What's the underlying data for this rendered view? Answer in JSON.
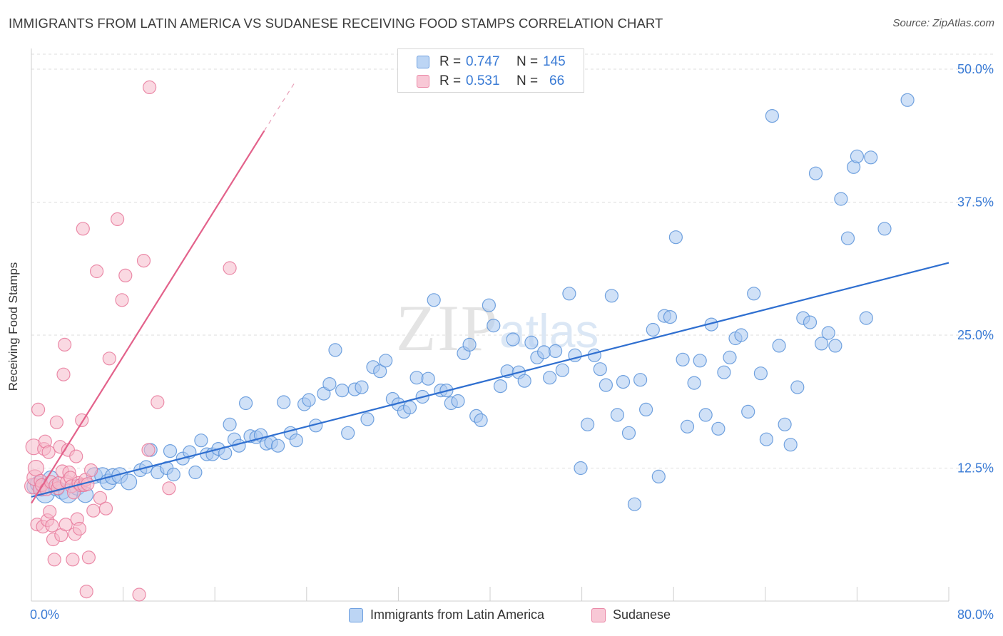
{
  "title": "IMMIGRANTS FROM LATIN AMERICA VS SUDANESE RECEIVING FOOD STAMPS CORRELATION CHART",
  "source": "Source: ZipAtlas.com",
  "watermark": {
    "zip": "ZIP",
    "atlas": "atlas"
  },
  "colors": {
    "blue_fill": "#a9c8f0",
    "blue_stroke": "#5b93d9",
    "blue_line": "#2f6fd0",
    "pink_fill": "#f6b9cb",
    "pink_stroke": "#e8799b",
    "pink_line": "#e3628b",
    "tick_text": "#3a7bd5",
    "grid": "#dddddd"
  },
  "legend": {
    "series": [
      {
        "r_label": "R =",
        "r_value": "0.747",
        "n_label": "N =",
        "n_value": "145"
      },
      {
        "r_label": "R =",
        "r_value": "0.531",
        "n_label": "N =",
        "n_value": "66"
      }
    ]
  },
  "bottom_legend": [
    "Immigrants from Latin America",
    "Sudanese"
  ],
  "chart_data": {
    "type": "scatter",
    "xlabel": "",
    "ylabel": "Receiving Food Stamps",
    "xlim": [
      0,
      80
    ],
    "ylim": [
      0,
      50
    ],
    "x_tick_labels": {
      "min": "0.0%",
      "max": "80.0%"
    },
    "y_ticks": [
      12.5,
      25.0,
      37.5,
      50.0
    ],
    "y_tick_labels": [
      "12.5%",
      "25.0%",
      "37.5%",
      "50.0%"
    ],
    "grid": true,
    "legend_position": "top-center",
    "series": [
      {
        "name": "Immigrants from Latin America",
        "color": "#a9c8f0",
        "r": 0.747,
        "n": 145,
        "trendline": {
          "x": [
            0,
            80
          ],
          "y": [
            9.8,
            31.8
          ]
        },
        "points": [
          [
            0.3,
            10.8,
            2
          ],
          [
            0.6,
            11.0,
            2
          ],
          [
            0.9,
            10.6,
            2
          ],
          [
            1.2,
            10.1,
            3
          ],
          [
            1.7,
            11.5,
            2
          ],
          [
            2.2,
            10.6,
            2
          ],
          [
            2.7,
            10.3,
            2
          ],
          [
            3.2,
            10.1,
            3
          ],
          [
            4.0,
            10.7,
            2
          ],
          [
            4.7,
            10.0,
            2
          ],
          [
            5.5,
            11.8,
            2
          ],
          [
            6.2,
            11.8,
            2
          ],
          [
            6.7,
            11.2,
            2
          ],
          [
            7.1,
            11.7,
            2
          ],
          [
            7.7,
            11.8,
            2
          ],
          [
            8.5,
            11.2,
            2
          ],
          [
            9.5,
            12.3,
            1
          ],
          [
            10.0,
            12.6,
            1
          ],
          [
            10.4,
            14.2,
            1
          ],
          [
            11.0,
            12.1,
            1
          ],
          [
            11.8,
            12.5,
            1
          ],
          [
            12.1,
            14.1,
            1
          ],
          [
            12.4,
            11.9,
            1
          ],
          [
            13.2,
            13.4,
            1
          ],
          [
            13.8,
            14.0,
            1
          ],
          [
            14.3,
            12.1,
            1
          ],
          [
            14.8,
            15.1,
            1
          ],
          [
            15.3,
            13.8,
            1
          ],
          [
            15.8,
            13.8,
            1
          ],
          [
            16.3,
            14.3,
            1
          ],
          [
            16.9,
            13.9,
            1
          ],
          [
            17.3,
            16.6,
            1
          ],
          [
            17.7,
            15.2,
            1
          ],
          [
            18.1,
            14.6,
            1
          ],
          [
            18.7,
            18.6,
            1
          ],
          [
            19.1,
            15.5,
            1
          ],
          [
            19.6,
            15.4,
            1
          ],
          [
            20.0,
            15.6,
            1
          ],
          [
            20.5,
            14.8,
            1
          ],
          [
            20.9,
            14.9,
            1
          ],
          [
            21.5,
            14.6,
            1
          ],
          [
            22.0,
            18.7,
            1
          ],
          [
            22.6,
            15.8,
            1
          ],
          [
            23.1,
            15.1,
            1
          ],
          [
            23.8,
            18.5,
            1
          ],
          [
            24.2,
            18.9,
            1
          ],
          [
            24.8,
            16.5,
            1
          ],
          [
            25.5,
            19.5,
            1
          ],
          [
            26.0,
            20.4,
            1
          ],
          [
            26.5,
            23.6,
            1
          ],
          [
            27.1,
            19.8,
            1
          ],
          [
            27.6,
            15.8,
            1
          ],
          [
            28.2,
            19.9,
            1
          ],
          [
            28.8,
            20.1,
            1
          ],
          [
            29.3,
            17.1,
            1
          ],
          [
            29.8,
            22.0,
            1
          ],
          [
            30.4,
            21.6,
            1
          ],
          [
            30.9,
            22.6,
            1
          ],
          [
            31.5,
            19.0,
            1
          ],
          [
            32.0,
            18.5,
            1
          ],
          [
            32.5,
            17.8,
            1
          ],
          [
            33.0,
            18.2,
            1
          ],
          [
            33.6,
            21.0,
            1
          ],
          [
            34.1,
            19.2,
            1
          ],
          [
            34.6,
            20.9,
            1
          ],
          [
            35.1,
            28.3,
            1
          ],
          [
            35.7,
            19.8,
            1
          ],
          [
            36.2,
            19.8,
            1
          ],
          [
            36.6,
            18.6,
            1
          ],
          [
            37.2,
            18.8,
            1
          ],
          [
            37.7,
            23.3,
            1
          ],
          [
            38.2,
            24.1,
            1
          ],
          [
            38.8,
            17.4,
            1
          ],
          [
            39.2,
            17.0,
            1
          ],
          [
            39.9,
            27.8,
            1
          ],
          [
            40.3,
            25.9,
            1
          ],
          [
            40.9,
            20.2,
            1
          ],
          [
            41.5,
            21.6,
            1
          ],
          [
            42.0,
            24.6,
            1
          ],
          [
            42.5,
            21.5,
            1
          ],
          [
            43.0,
            20.7,
            1
          ],
          [
            43.6,
            24.3,
            1
          ],
          [
            44.1,
            22.9,
            1
          ],
          [
            44.7,
            23.4,
            1
          ],
          [
            45.2,
            21.0,
            1
          ],
          [
            45.7,
            23.5,
            1
          ],
          [
            46.3,
            21.7,
            1
          ],
          [
            46.9,
            28.9,
            1
          ],
          [
            47.4,
            23.1,
            1
          ],
          [
            47.9,
            12.5,
            1
          ],
          [
            48.5,
            16.6,
            1
          ],
          [
            49.1,
            23.1,
            1
          ],
          [
            49.6,
            21.8,
            1
          ],
          [
            50.1,
            20.3,
            1
          ],
          [
            50.6,
            28.7,
            1
          ],
          [
            51.1,
            17.5,
            1
          ],
          [
            51.6,
            20.6,
            1
          ],
          [
            52.1,
            15.8,
            1
          ],
          [
            52.6,
            9.1,
            1
          ],
          [
            53.1,
            20.8,
            1
          ],
          [
            53.6,
            18.0,
            1
          ],
          [
            54.2,
            25.5,
            1
          ],
          [
            54.7,
            11.7,
            1
          ],
          [
            55.2,
            26.8,
            1
          ],
          [
            55.7,
            26.7,
            1
          ],
          [
            56.2,
            34.2,
            1
          ],
          [
            56.8,
            22.7,
            1
          ],
          [
            57.2,
            16.4,
            1
          ],
          [
            57.8,
            20.5,
            1
          ],
          [
            58.3,
            22.6,
            1
          ],
          [
            58.8,
            17.5,
            1
          ],
          [
            59.3,
            26.0,
            1
          ],
          [
            59.9,
            16.2,
            1
          ],
          [
            60.4,
            21.5,
            1
          ],
          [
            60.9,
            22.9,
            1
          ],
          [
            61.4,
            24.7,
            1
          ],
          [
            61.9,
            25.0,
            1
          ],
          [
            62.5,
            17.8,
            1
          ],
          [
            63.0,
            28.9,
            1
          ],
          [
            63.6,
            21.4,
            1
          ],
          [
            64.1,
            15.2,
            1
          ],
          [
            64.6,
            45.6,
            1
          ],
          [
            65.2,
            24.0,
            1
          ],
          [
            65.7,
            16.6,
            1
          ],
          [
            66.2,
            14.7,
            1
          ],
          [
            66.8,
            20.1,
            1
          ],
          [
            67.3,
            26.6,
            1
          ],
          [
            67.9,
            26.2,
            1
          ],
          [
            68.4,
            40.2,
            1
          ],
          [
            68.9,
            24.2,
            1
          ],
          [
            69.5,
            25.2,
            1
          ],
          [
            70.1,
            24.0,
            1
          ],
          [
            70.6,
            37.8,
            1
          ],
          [
            71.2,
            34.1,
            1
          ],
          [
            71.7,
            40.8,
            1
          ],
          [
            72.0,
            41.8,
            1
          ],
          [
            72.8,
            26.6,
            1
          ],
          [
            73.2,
            41.7,
            1
          ],
          [
            74.4,
            35.0,
            1
          ],
          [
            76.4,
            47.1,
            1
          ]
        ]
      },
      {
        "name": "Sudanese",
        "color": "#f6b9cb",
        "r": 0.531,
        "n": 66,
        "trendline": {
          "x": [
            0,
            20.3
          ],
          "y": [
            9.2,
            44.2
          ]
        },
        "trendline_dashed": {
          "x": [
            20.3,
            23.0
          ],
          "y": [
            44.2,
            48.8
          ]
        },
        "points": [
          [
            0.1,
            10.8,
            2
          ],
          [
            0.2,
            14.5,
            2
          ],
          [
            0.3,
            11.6,
            2
          ],
          [
            0.4,
            12.5,
            2
          ],
          [
            0.5,
            7.2,
            1
          ],
          [
            0.6,
            18.0,
            1
          ],
          [
            0.7,
            10.5,
            1
          ],
          [
            0.8,
            11.3,
            1
          ],
          [
            0.9,
            10.9,
            1
          ],
          [
            1.0,
            7.0,
            1
          ],
          [
            1.1,
            14.3,
            1
          ],
          [
            1.2,
            15.0,
            1
          ],
          [
            1.3,
            10.5,
            1
          ],
          [
            1.4,
            7.6,
            1
          ],
          [
            1.5,
            14.0,
            1
          ],
          [
            1.6,
            8.4,
            1
          ],
          [
            1.7,
            11.2,
            1
          ],
          [
            1.8,
            7.1,
            1
          ],
          [
            1.9,
            5.8,
            1
          ],
          [
            2.0,
            3.9,
            1
          ],
          [
            2.1,
            10.9,
            1
          ],
          [
            2.2,
            16.8,
            1
          ],
          [
            2.3,
            10.6,
            1
          ],
          [
            2.4,
            11.1,
            1
          ],
          [
            2.5,
            14.5,
            1
          ],
          [
            2.6,
            6.2,
            1
          ],
          [
            2.7,
            12.2,
            1
          ],
          [
            2.8,
            21.3,
            1
          ],
          [
            2.9,
            24.1,
            1
          ],
          [
            3.0,
            7.2,
            1
          ],
          [
            3.1,
            11.2,
            1
          ],
          [
            3.2,
            14.2,
            1
          ],
          [
            3.3,
            12.1,
            1
          ],
          [
            3.4,
            11.6,
            1
          ],
          [
            3.5,
            10.8,
            1
          ],
          [
            3.6,
            3.9,
            1
          ],
          [
            3.7,
            10.2,
            1
          ],
          [
            3.8,
            6.3,
            1
          ],
          [
            3.9,
            13.6,
            1
          ],
          [
            4.0,
            7.7,
            1
          ],
          [
            4.1,
            11.1,
            1
          ],
          [
            4.2,
            6.8,
            1
          ],
          [
            4.3,
            10.9,
            1
          ],
          [
            4.4,
            17.0,
            1
          ],
          [
            4.5,
            35.0,
            1
          ],
          [
            4.6,
            10.9,
            1
          ],
          [
            4.7,
            11.4,
            1
          ],
          [
            4.8,
            0.9,
            1
          ],
          [
            4.9,
            11.0,
            1
          ],
          [
            5.0,
            4.1,
            1
          ],
          [
            5.2,
            12.3,
            1
          ],
          [
            5.4,
            8.5,
            1
          ],
          [
            5.7,
            31.0,
            1
          ],
          [
            6.0,
            9.7,
            1
          ],
          [
            6.5,
            8.7,
            1
          ],
          [
            6.8,
            22.8,
            1
          ],
          [
            7.5,
            35.9,
            1
          ],
          [
            7.9,
            28.3,
            1
          ],
          [
            8.2,
            30.6,
            1
          ],
          [
            9.4,
            0.6,
            1
          ],
          [
            9.8,
            32.0,
            1
          ],
          [
            10.2,
            14.2,
            1
          ],
          [
            11.0,
            18.7,
            1
          ],
          [
            12.0,
            10.6,
            1
          ],
          [
            17.3,
            31.3,
            1
          ],
          [
            10.3,
            48.3,
            1
          ]
        ]
      }
    ]
  }
}
